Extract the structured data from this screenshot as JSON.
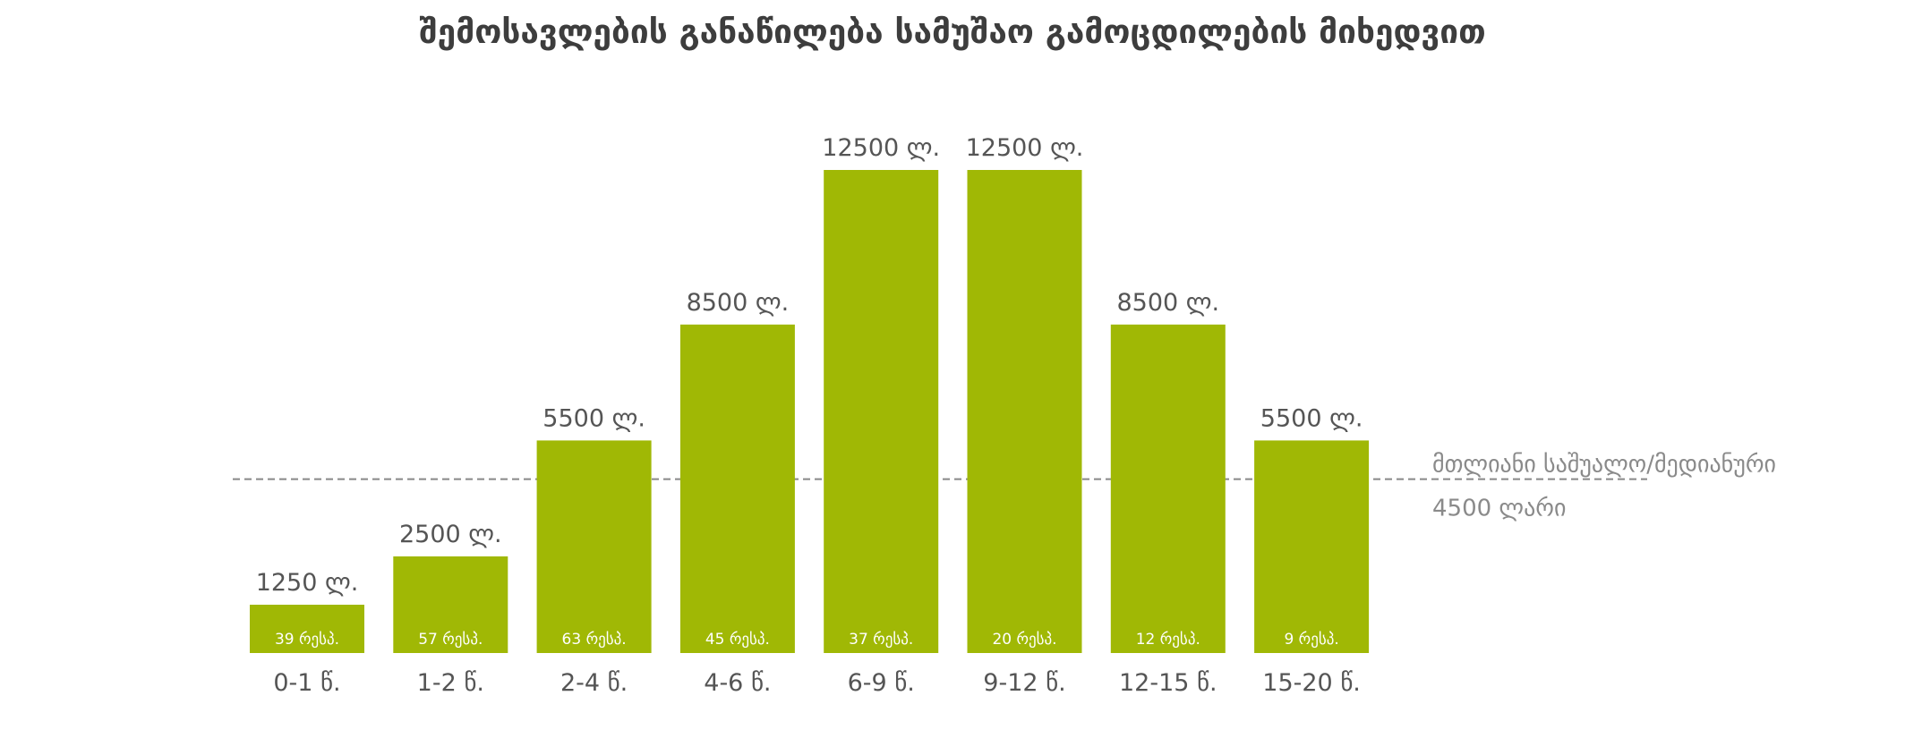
{
  "chart_data": {
    "type": "bar",
    "title": "შემოსავლების განაწილება სამუშაო გამოცდილების მიხედვით",
    "categories": [
      "0-1 წ.",
      "1-2 წ.",
      "2-4 წ.",
      "4-6 წ.",
      "6-9 წ.",
      "9-12 წ.",
      "12-15 წ.",
      "15-20 წ."
    ],
    "values": [
      1250,
      2500,
      5500,
      8500,
      12500,
      12500,
      8500,
      5500
    ],
    "value_labels": [
      "1250 ლ.",
      "2500 ლ.",
      "5500 ლ.",
      "8500 ლ.",
      "12500 ლ.",
      "12500 ლ.",
      "8500 ლ.",
      "5500 ლ."
    ],
    "respondents": [
      39,
      57,
      63,
      45,
      37,
      20,
      12,
      9
    ],
    "respondent_labels": [
      "39 რესპ.",
      "57 რესპ.",
      "63 რესპ.",
      "45 რესპ.",
      "37 რესპ.",
      "20 რესპ.",
      "12 რესპ.",
      "9 რესპ."
    ],
    "reference_line": {
      "value": 4500,
      "label_line1": "მთლიანი საშუალო/მედიანური",
      "label_line2": "4500 ლარი",
      "color": "#888888",
      "style": "dashed"
    },
    "ylim": [
      0,
      12500
    ],
    "xlabel": "",
    "ylabel": "",
    "grid": false,
    "legend": "none",
    "bar_color": "#a0b805"
  }
}
